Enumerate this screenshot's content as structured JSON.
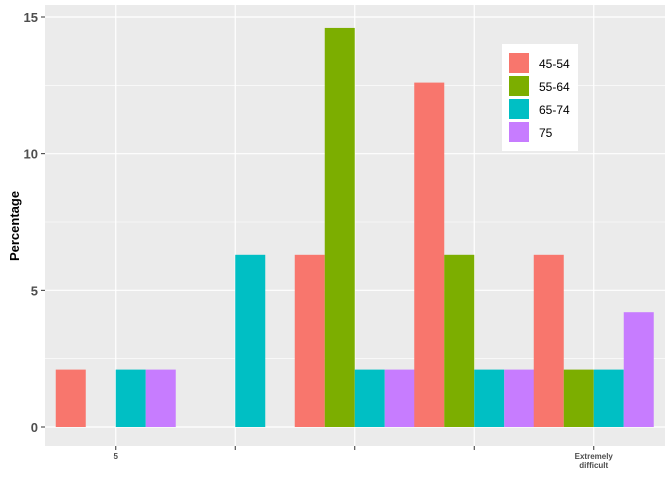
{
  "chart_data": {
    "type": "bar",
    "ylabel": "Percentage",
    "xlabel": "",
    "ylim": [
      0,
      15
    ],
    "yticks": [
      0,
      5,
      10,
      15
    ],
    "categories": [
      "5",
      "",
      "",
      "",
      "Extremely difficult"
    ],
    "series": [
      {
        "name": "45-54",
        "color": "#F8766D",
        "values": [
          2.1,
          0,
          6.3,
          12.6,
          6.3
        ]
      },
      {
        "name": "55-64",
        "color": "#7CAE00",
        "values": [
          0,
          0,
          14.6,
          6.3,
          2.1
        ]
      },
      {
        "name": "65-74",
        "color": "#00BFC4",
        "values": [
          2.1,
          6.3,
          2.1,
          2.1,
          2.1
        ]
      },
      {
        "name": "75",
        "color": "#C77CFF",
        "values": [
          2.1,
          null,
          2.1,
          2.1,
          4.2
        ]
      }
    ],
    "legend_position": "top-right",
    "grid": true,
    "panel_background": "#EBEBEB"
  }
}
